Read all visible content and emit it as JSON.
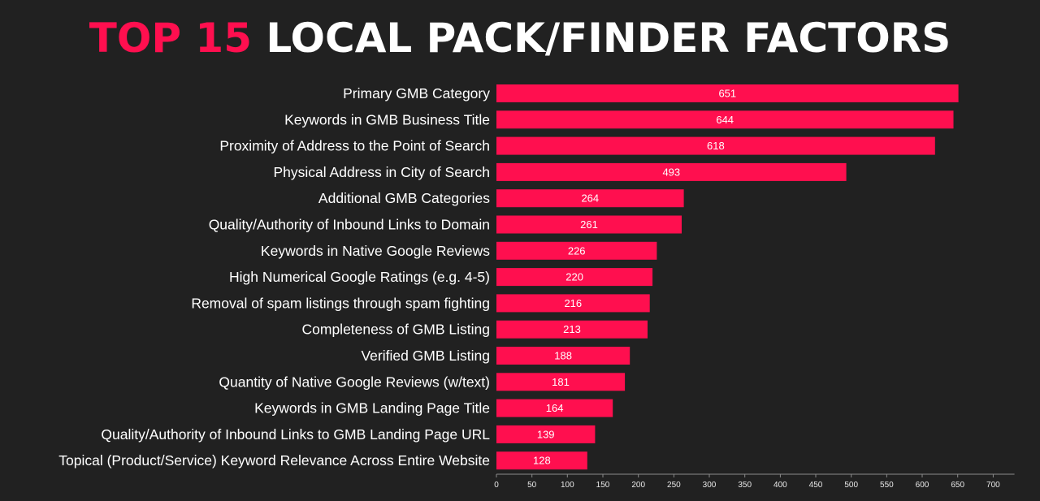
{
  "title": {
    "accent": "TOP 15",
    "rest": "LOCAL PACK/FINDER FACTORS"
  },
  "colors": {
    "background": "#212121",
    "bar": "#ff0f4f",
    "text": "#ffffff",
    "axis": "#8a8a8a"
  },
  "chart_data": {
    "type": "bar",
    "orientation": "horizontal",
    "title": "TOP 15 LOCAL PACK/FINDER FACTORS",
    "xlabel": "",
    "ylabel": "",
    "xlim": [
      0,
      730
    ],
    "ticks": [
      0,
      50,
      100,
      150,
      200,
      250,
      300,
      350,
      400,
      450,
      500,
      550,
      600,
      650,
      700
    ],
    "grid": false,
    "categories": [
      "Primary GMB Category",
      "Keywords in GMB Business Title",
      "Proximity of Address to the Point of Search",
      "Physical Address in City of Search",
      "Additional GMB Categories",
      "Quality/Authority of Inbound Links to Domain",
      "Keywords in Native Google Reviews",
      "High Numerical Google Ratings (e.g. 4-5)",
      "Removal of spam listings through spam fighting",
      "Completeness of GMB Listing",
      "Verified GMB Listing",
      "Quantity of Native Google Reviews (w/text)",
      "Keywords in GMB Landing Page Title",
      "Quality/Authority of Inbound Links to GMB Landing Page URL",
      "Topical (Product/Service) Keyword Relevance Across Entire Website"
    ],
    "values": [
      651,
      644,
      618,
      493,
      264,
      261,
      226,
      220,
      216,
      213,
      188,
      181,
      164,
      139,
      128
    ]
  }
}
